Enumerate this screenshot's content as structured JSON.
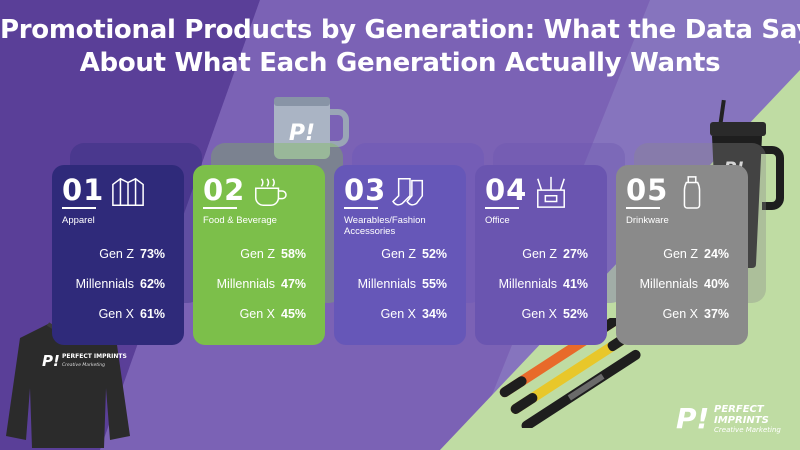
{
  "title_lines": [
    "Promotional Products by Generation: What the Data Says",
    "About What Each Generation Actually Wants"
  ],
  "chart_data": {
    "type": "table",
    "title": "Promotional Products by Generation: What the Data Says About What Each Generation Actually Wants",
    "generations": [
      "Gen Z",
      "Millennials",
      "Gen X"
    ],
    "categories": [
      {
        "number": "01",
        "name": "Apparel",
        "icon": "jacket-icon",
        "color": "#2f2a7a",
        "values": {
          "Gen Z": "73%",
          "Millennials": "62%",
          "Gen X": "61%"
        }
      },
      {
        "number": "02",
        "name": "Food & Beverage",
        "icon": "coffee-cup-icon",
        "color": "#7cbf4a",
        "values": {
          "Gen Z": "58%",
          "Millennials": "47%",
          "Gen X": "45%"
        }
      },
      {
        "number": "03",
        "name": "Wearables/Fashion Accessories",
        "icon": "socks-icon",
        "color": "#6657b8",
        "values": {
          "Gen Z": "52%",
          "Millennials": "55%",
          "Gen X": "34%"
        }
      },
      {
        "number": "04",
        "name": "Office",
        "icon": "pen-holder-icon",
        "color": "#6a55b0",
        "values": {
          "Gen Z": "27%",
          "Millennials": "41%",
          "Gen X": "52%"
        }
      },
      {
        "number": "05",
        "name": "Drinkware",
        "icon": "water-bottle-icon",
        "color": "#8a8a8a",
        "values": {
          "Gen Z": "24%",
          "Millennials": "40%",
          "Gen X": "37%"
        }
      }
    ]
  },
  "products": {
    "mug_logo": "P!",
    "tumbler_logo": "P!",
    "sweatshirt_logo": "P!",
    "sweatshirt_brand": "PERFECT IMPRINTS",
    "sweatshirt_tagline": "Creative Marketing"
  },
  "brand": {
    "mark": "P!",
    "line1": "PERFECT",
    "line2": "IMPRINTS",
    "tagline": "Creative Marketing"
  }
}
